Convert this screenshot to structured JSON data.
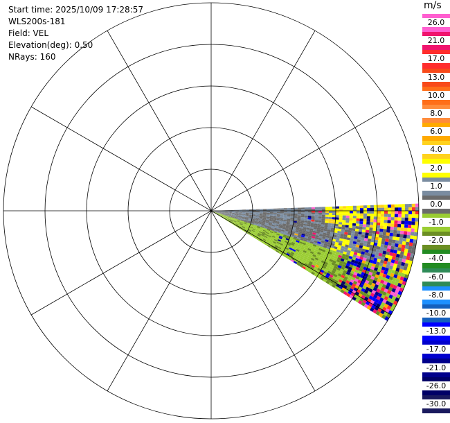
{
  "header": {
    "start_time": "Start time: 2025/10/09 17:28:57",
    "instrument": "WLS200s-181",
    "field": "Field: VEL",
    "elevation": "Elevation(deg): 0.50",
    "nrays": "NRays: 160"
  },
  "colorbar": {
    "unit": "m/s",
    "levels": [
      {
        "label": "26.0",
        "color": "#ff5fd0"
      },
      {
        "label": "21.0",
        "color": "#f0146e"
      },
      {
        "label": "17.0",
        "color": "#ff2d2d"
      },
      {
        "label": "13.0",
        "color": "#f84a1a"
      },
      {
        "label": "10.0",
        "color": "#ff6e19"
      },
      {
        "label": "8.0",
        "color": "#ff8c3c"
      },
      {
        "label": "6.0",
        "color": "#ffaa00"
      },
      {
        "label": "4.0",
        "color": "#ffd21e"
      },
      {
        "label": "2.0",
        "color": "#ffff00"
      },
      {
        "label": "1.0",
        "color": "#7a8ca0"
      },
      {
        "label": "0.0",
        "color": "#6b6b6b"
      },
      {
        "label": "-1.0",
        "color": "#9acd32"
      },
      {
        "label": "-2.0",
        "color": "#6b8e23"
      },
      {
        "label": "-4.0",
        "color": "#228b22"
      },
      {
        "label": "-6.0",
        "color": "#2e8b57"
      },
      {
        "label": "-8.0",
        "color": "#1e90ff"
      },
      {
        "label": "-10.0",
        "color": "#1560bd"
      },
      {
        "label": "-13.0",
        "color": "#0000ff"
      },
      {
        "label": "-17.0",
        "color": "#0000cd"
      },
      {
        "label": "-21.0",
        "color": "#00008b"
      },
      {
        "label": "-26.0",
        "color": "#000066"
      },
      {
        "label": "-30.0",
        "color": "#1a1a5e"
      }
    ]
  },
  "chart_data": {
    "type": "heatmap",
    "projection": "polar PPI",
    "field": "VEL",
    "unit": "m/s",
    "elevation_deg": 0.5,
    "n_rays": 160,
    "range_rings": 5,
    "spokes_deg": 30,
    "sector_azimuth_deg": [
      88,
      122
    ],
    "velocity_range": [
      -30.0,
      26.0
    ],
    "sector_description": [
      {
        "azimuth_deg": [
          88,
          96
        ],
        "near_range": "gray 0.0 to 1.0",
        "far_range": "yellow 2.0 to 4.0 with red and blue noise"
      },
      {
        "azimuth_deg": [
          96,
          108
        ],
        "near_range": "gray 0.0",
        "far_range": "mixed yellow, gray, red, blue noise"
      },
      {
        "azimuth_deg": [
          108,
          122
        ],
        "near_range": "green -1.0 to -2.0",
        "far_range": "blue and red noise"
      }
    ]
  }
}
